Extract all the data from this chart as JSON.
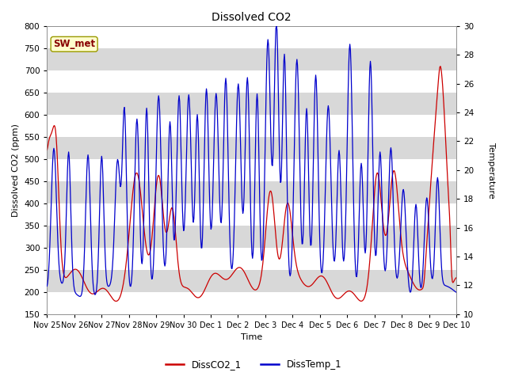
{
  "title": "Dissolved CO2",
  "xlabel": "Time",
  "ylabel_left": "Dissolved CO2 (ppm)",
  "ylabel_right": "Temperature",
  "ylim_left": [
    150,
    800
  ],
  "ylim_right": [
    10,
    30
  ],
  "yticks_left": [
    150,
    200,
    250,
    300,
    350,
    400,
    450,
    500,
    550,
    600,
    650,
    700,
    750,
    800
  ],
  "yticks_right": [
    10,
    12,
    14,
    16,
    18,
    20,
    22,
    24,
    26,
    28,
    30
  ],
  "xtick_labels": [
    "Nov 25",
    "Nov 26",
    "Nov 27",
    "Nov 28",
    "Nov 29",
    "Nov 30",
    "Dec 1",
    "Dec 2",
    "Dec 3",
    "Dec 4",
    "Dec 5",
    "Dec 6",
    "Dec 7",
    "Dec 8",
    "Dec 9",
    "Dec 10"
  ],
  "legend_entries": [
    "DissCO2_1",
    "DissTemp_1"
  ],
  "legend_colors": [
    "#cc0000",
    "#0000cc"
  ],
  "tag_label": "SW_met",
  "tag_bg": "#ffffcc",
  "tag_border": "#999900",
  "tag_text_color": "#880000",
  "line_color_co2": "#cc0000",
  "line_color_temp": "#0000cc",
  "fig_bg": "#ffffff",
  "plot_bg": "#e8e8e8",
  "band_color_dark": "#d8d8d8",
  "band_color_light": "#e8e8e8",
  "grid_color": "#ffffff"
}
